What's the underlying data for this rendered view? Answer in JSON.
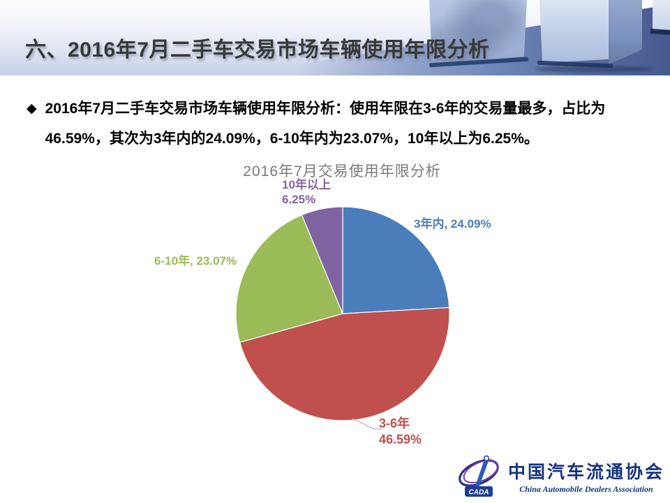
{
  "header": {
    "title": "六、2016年7月二手车交易市场车辆使用年限分析"
  },
  "bullet": {
    "marker": "◆",
    "text": "2016年7月二手车交易市场车辆使用年限分析：使用年限在3-6年的交易量最多，占比为46.59%，其次为3年内的24.09%，6-10年内为23.07%，10年以上为6.25%。"
  },
  "chart_data": {
    "type": "pie",
    "title": "2016年7月交易使用年限分析",
    "categories": [
      "3年内",
      "3-6年",
      "6-10年",
      "10年以上"
    ],
    "values": [
      24.09,
      46.59,
      23.07,
      6.25
    ],
    "unit": "%",
    "colors": [
      "#4a7ebb",
      "#c0504d",
      "#9bbb59",
      "#8064a2"
    ],
    "start_angle": "12-oclock",
    "direction": "clockwise",
    "legend": "none",
    "labels": {
      "slice0": "3年内, 24.09%",
      "slice1_line1": "3-6年",
      "slice1_line2": "46.59%",
      "slice2": "6-10年, 23.07%",
      "slice3_line1": "10年以上",
      "slice3_line2": "6.25%"
    }
  },
  "logo": {
    "emblem_abbr": "CADA",
    "name_cn": "中国汽车流通协会",
    "name_en": "China Automobile Dealers Association",
    "brand_color": "#16337f"
  }
}
